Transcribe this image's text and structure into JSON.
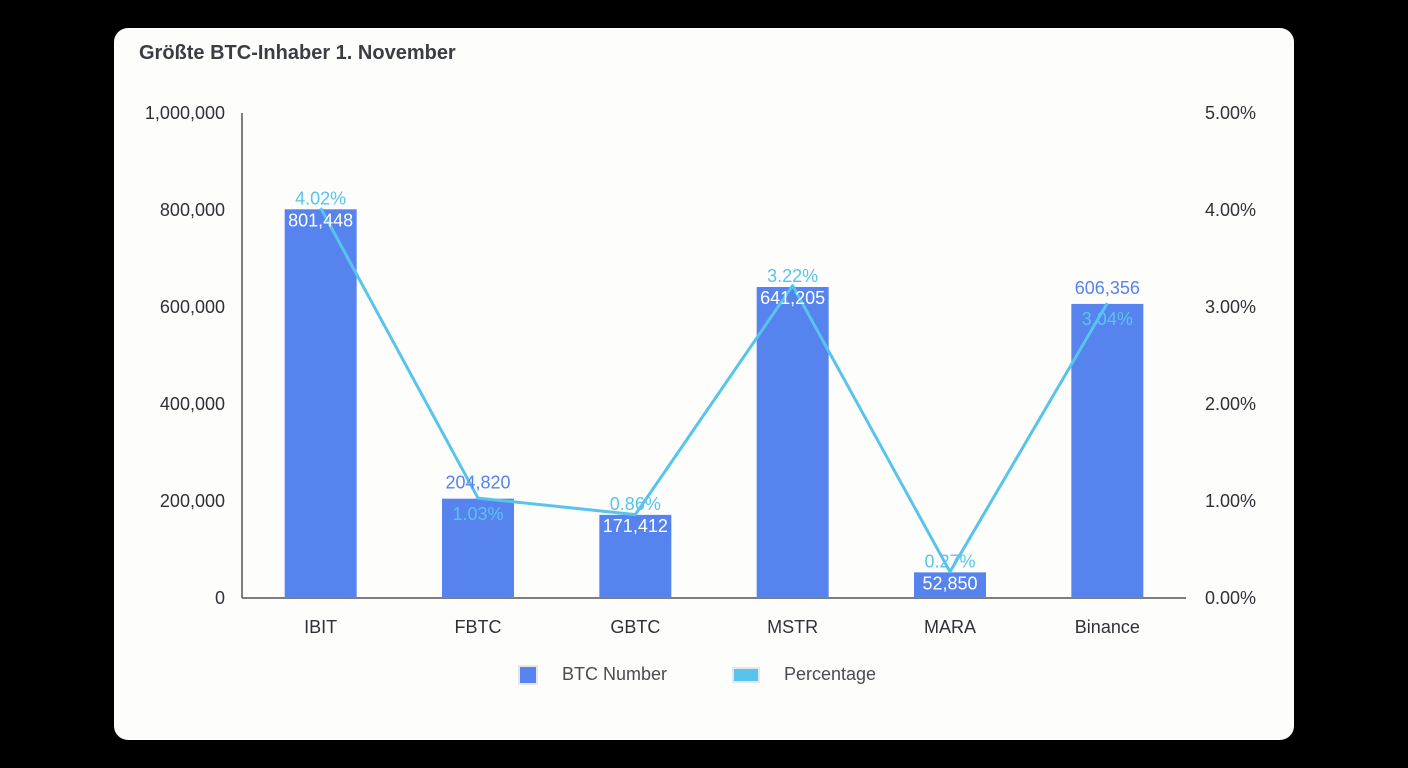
{
  "title": "Größte BTC-Inhaber 1. November",
  "colors": {
    "bar": "#5783ee",
    "line": "#58c4ec",
    "axis": "#555555"
  },
  "legend": {
    "bar_label": "BTC Number",
    "line_label": "Percentage"
  },
  "chart_data": {
    "type": "bar+line",
    "title": "Größte BTC-Inhaber 1. November",
    "categories": [
      "IBIT",
      "FBTC",
      "GBTC",
      "MSTR",
      "MARA",
      "Binance"
    ],
    "series": [
      {
        "name": "BTC Number",
        "type": "bar",
        "axis": "left",
        "values": [
          801448,
          204820,
          171412,
          641205,
          52850,
          606356
        ],
        "labels": [
          "801,448",
          "204,820",
          "171,412",
          "641,205",
          "52,850",
          "606,356"
        ]
      },
      {
        "name": "Percentage",
        "type": "line",
        "axis": "right",
        "values": [
          4.02,
          1.03,
          0.86,
          3.22,
          0.27,
          3.04
        ],
        "labels": [
          "4.02%",
          "1.03%",
          "0.86%",
          "3.22%",
          "0.27%",
          "3.04%"
        ]
      }
    ],
    "y_left": {
      "ylim": [
        0,
        1000000
      ],
      "ticks": [
        "0",
        "200,000",
        "400,000",
        "600,000",
        "800,000",
        "1,000,000"
      ]
    },
    "y_right": {
      "ylim": [
        0,
        5
      ],
      "ticks": [
        "0.00%",
        "1.00%",
        "2.00%",
        "3.00%",
        "4.00%",
        "5.00%"
      ]
    },
    "xlabel": "",
    "ylabel": "",
    "grid": false,
    "legend_position": "bottom"
  }
}
